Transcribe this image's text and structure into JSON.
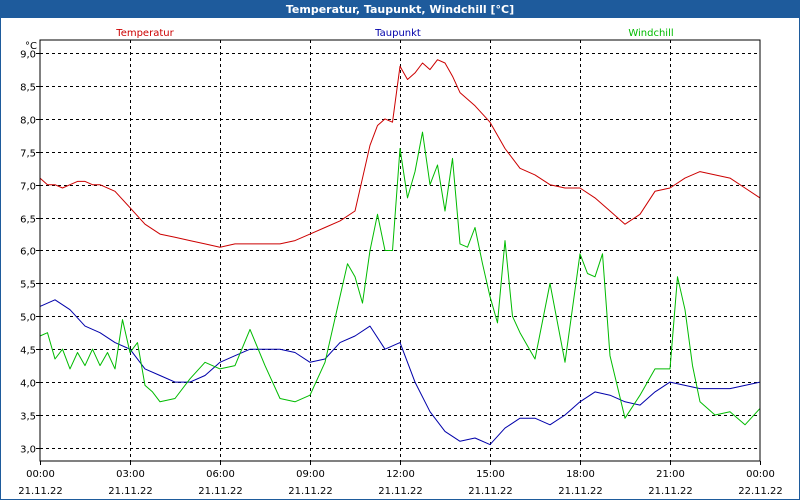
{
  "window": {
    "title": "Temperatur, Taupunkt, Windchill [°C]"
  },
  "colors": {
    "temperatur": "#cc0000",
    "taupunkt": "#0000aa",
    "windchill": "#00bb00",
    "grid": "#000000",
    "titlebar": "#1e5b9c"
  },
  "chart_data": {
    "type": "line",
    "title": "Temperatur, Taupunkt, Windchill [°C]",
    "ylabel": "°C",
    "ylim": [
      2.8,
      9.2
    ],
    "y_ticks": [
      "9,0",
      "8,5",
      "8,0",
      "7,5",
      "7,0",
      "6,5",
      "6,0",
      "5,5",
      "5,0",
      "4,5",
      "4,0",
      "3,5",
      "3,0"
    ],
    "y_tick_values": [
      9.0,
      8.5,
      8.0,
      7.5,
      7.0,
      6.5,
      6.0,
      5.5,
      5.0,
      4.5,
      4.0,
      3.5,
      3.0
    ],
    "xlim_hours": [
      0,
      24
    ],
    "x_ticks": [
      {
        "time": "00:00",
        "date": "21.11.22"
      },
      {
        "time": "03:00",
        "date": "21.11.22"
      },
      {
        "time": "06:00",
        "date": "21.11.22"
      },
      {
        "time": "09:00",
        "date": "21.11.22"
      },
      {
        "time": "12:00",
        "date": "21.11.22"
      },
      {
        "time": "15:00",
        "date": "21.11.22"
      },
      {
        "time": "18:00",
        "date": "21.11.22"
      },
      {
        "time": "21:00",
        "date": "21.11.22"
      },
      {
        "time": "00:00",
        "date": "22.11.22"
      }
    ],
    "legend": [
      "Temperatur",
      "Taupunkt",
      "Windchill"
    ],
    "series": [
      {
        "name": "Temperatur",
        "x": [
          0,
          0.25,
          0.5,
          0.75,
          1,
          1.25,
          1.5,
          1.75,
          2,
          2.5,
          3,
          3.5,
          4,
          4.5,
          5,
          5.5,
          6,
          6.5,
          7,
          7.5,
          8,
          8.5,
          9,
          9.5,
          10,
          10.5,
          11,
          11.25,
          11.5,
          11.75,
          12,
          12.25,
          12.5,
          12.75,
          13,
          13.25,
          13.5,
          13.75,
          14,
          14.5,
          15,
          15.5,
          16,
          16.5,
          17,
          17.5,
          18,
          18.5,
          19,
          19.5,
          20,
          20.5,
          21,
          21.5,
          22,
          22.5,
          23,
          23.5,
          24
        ],
        "values": [
          7.1,
          7.0,
          7.0,
          6.95,
          7.0,
          7.05,
          7.05,
          7.0,
          7.0,
          6.9,
          6.65,
          6.4,
          6.25,
          6.2,
          6.15,
          6.1,
          6.05,
          6.1,
          6.1,
          6.1,
          6.1,
          6.15,
          6.25,
          6.35,
          6.45,
          6.6,
          7.6,
          7.9,
          8.0,
          7.95,
          8.8,
          8.6,
          8.7,
          8.85,
          8.75,
          8.9,
          8.85,
          8.65,
          8.4,
          8.2,
          7.95,
          7.55,
          7.25,
          7.15,
          7.0,
          6.95,
          6.95,
          6.8,
          6.6,
          6.4,
          6.55,
          6.9,
          6.95,
          7.1,
          7.2,
          7.15,
          7.1,
          6.95,
          6.8
        ]
      },
      {
        "name": "Taupunkt",
        "x": [
          0,
          0.5,
          1,
          1.5,
          2,
          2.5,
          3,
          3.5,
          4,
          4.5,
          5,
          5.5,
          6,
          6.5,
          7,
          7.5,
          8,
          8.5,
          9,
          9.5,
          10,
          10.5,
          11,
          11.5,
          12,
          12.5,
          13,
          13.5,
          14,
          14.5,
          15,
          15.5,
          16,
          16.5,
          17,
          17.5,
          18,
          18.5,
          19,
          19.5,
          20,
          20.5,
          21,
          21.5,
          22,
          22.5,
          23,
          23.5,
          24
        ],
        "values": [
          5.15,
          5.25,
          5.1,
          4.85,
          4.75,
          4.6,
          4.5,
          4.2,
          4.1,
          4.0,
          4.0,
          4.1,
          4.3,
          4.4,
          4.5,
          4.5,
          4.5,
          4.45,
          4.3,
          4.35,
          4.6,
          4.7,
          4.85,
          4.5,
          4.6,
          4.0,
          3.55,
          3.25,
          3.1,
          3.15,
          3.05,
          3.3,
          3.45,
          3.45,
          3.35,
          3.5,
          3.7,
          3.85,
          3.8,
          3.7,
          3.65,
          3.85,
          4.0,
          3.95,
          3.9,
          3.9,
          3.9,
          3.95,
          4.0
        ]
      },
      {
        "name": "Windchill",
        "x": [
          0,
          0.25,
          0.5,
          0.75,
          1,
          1.25,
          1.5,
          1.75,
          2,
          2.25,
          2.5,
          2.75,
          3,
          3.25,
          3.5,
          3.75,
          4,
          4.5,
          5,
          5.5,
          6,
          6.5,
          7,
          7.5,
          8,
          8.5,
          9,
          9.5,
          10,
          10.25,
          10.5,
          10.75,
          11,
          11.25,
          11.5,
          11.75,
          12,
          12.25,
          12.5,
          12.75,
          13,
          13.25,
          13.5,
          13.75,
          14,
          14.25,
          14.5,
          14.75,
          15,
          15.25,
          15.5,
          15.75,
          16,
          16.5,
          17,
          17.5,
          18,
          18.25,
          18.5,
          18.75,
          19,
          19.5,
          20,
          20.5,
          21,
          21.25,
          21.5,
          21.75,
          22,
          22.5,
          23,
          23.5,
          24
        ],
        "values": [
          4.7,
          4.75,
          4.35,
          4.5,
          4.2,
          4.45,
          4.25,
          4.5,
          4.25,
          4.45,
          4.2,
          4.95,
          4.45,
          4.6,
          3.95,
          3.85,
          3.7,
          3.75,
          4.05,
          4.3,
          4.2,
          4.25,
          4.8,
          4.25,
          3.75,
          3.7,
          3.8,
          4.3,
          5.3,
          5.8,
          5.6,
          5.2,
          6.0,
          6.55,
          6.0,
          6.0,
          7.55,
          6.8,
          7.2,
          7.8,
          7.0,
          7.3,
          6.6,
          7.4,
          6.1,
          6.05,
          6.35,
          5.8,
          5.3,
          4.9,
          6.15,
          5.0,
          4.75,
          4.35,
          5.5,
          4.3,
          5.95,
          5.65,
          5.6,
          5.95,
          4.4,
          3.45,
          3.8,
          4.2,
          4.2,
          5.6,
          5.1,
          4.25,
          3.7,
          3.5,
          3.55,
          3.35,
          3.6
        ]
      }
    ]
  }
}
